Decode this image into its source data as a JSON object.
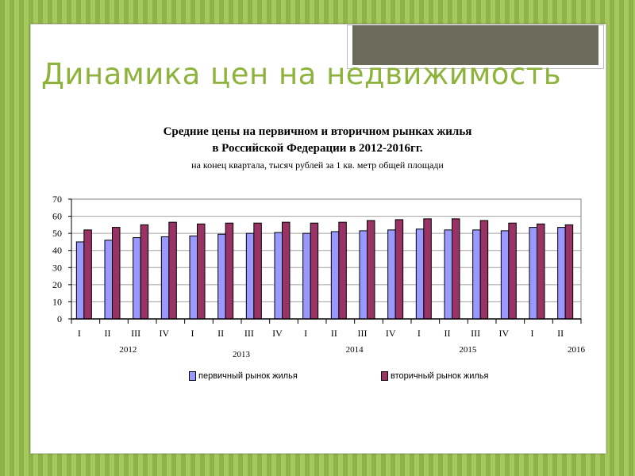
{
  "slide": {
    "title": "Динамика цен на недвижимость"
  },
  "chart_data": {
    "type": "bar",
    "title": "Средние цены на первичном и вторичном рынках жилья",
    "title_line2": "в Российской Федерации в 2012-2016гг.",
    "subtitle": "на конец квартала, тысяч рублей за 1 кв. метр общей площади",
    "categories": [
      "I",
      "II",
      "III",
      "IV",
      "I",
      "II",
      "III",
      "IV",
      "I",
      "II",
      "III",
      "IV",
      "I",
      "II",
      "III",
      "IV",
      "I",
      "II"
    ],
    "years": [
      {
        "label": "2012",
        "span": [
          0,
          3
        ]
      },
      {
        "label": "2013",
        "span": [
          4,
          7
        ]
      },
      {
        "label": "2014",
        "span": [
          8,
          11
        ]
      },
      {
        "label": "2015",
        "span": [
          12,
          15
        ]
      },
      {
        "label": "2016",
        "span": [
          16,
          17
        ]
      }
    ],
    "series": [
      {
        "name": "первичный рынок жилья",
        "color": "#9999ff",
        "values": [
          45,
          46,
          47.5,
          48,
          48.5,
          49.5,
          50,
          50.5,
          50,
          51,
          51.5,
          52,
          52.5,
          52,
          52,
          51.5,
          53.5,
          53.5
        ]
      },
      {
        "name": "вторичный рынок жилья",
        "color": "#993366",
        "values": [
          52,
          53.5,
          55,
          56.5,
          55.5,
          56,
          56,
          56.5,
          56,
          56.5,
          57.5,
          58,
          58.5,
          58.5,
          57.5,
          56,
          55.5,
          55
        ]
      }
    ],
    "ylim": [
      0,
      70
    ],
    "yticks": [
      0,
      10,
      20,
      30,
      40,
      50,
      60,
      70
    ],
    "grid": true,
    "legend_position": "bottom"
  }
}
